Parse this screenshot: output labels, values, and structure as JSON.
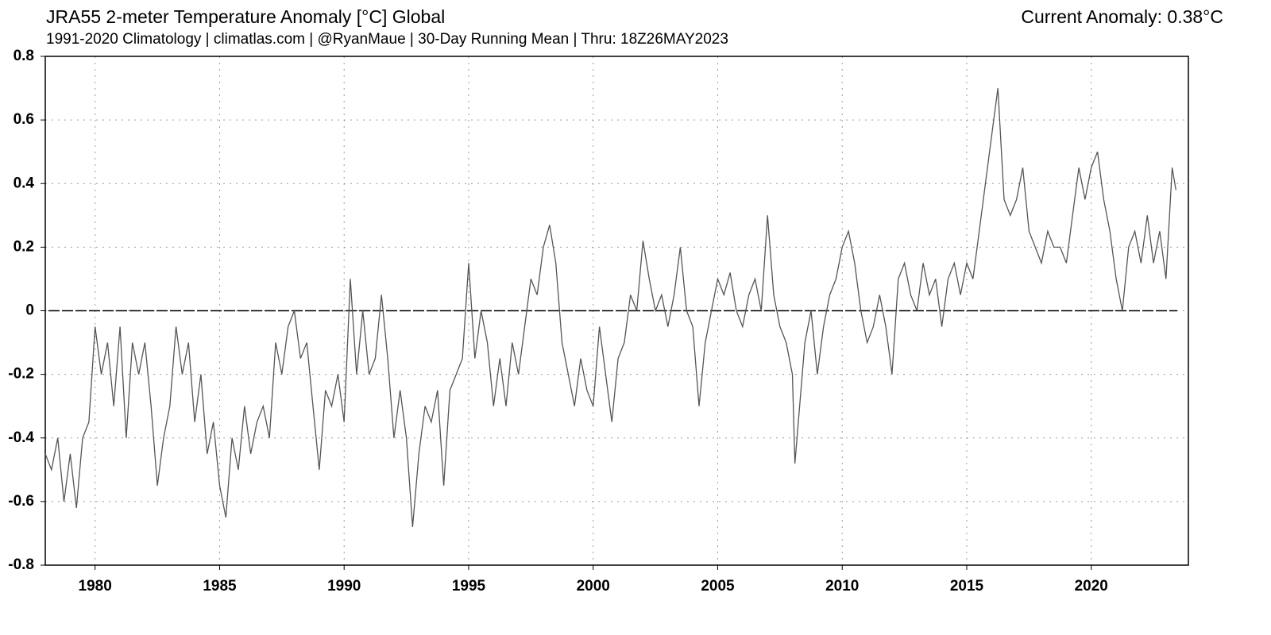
{
  "chart_data": {
    "type": "line",
    "title": "JRA55 2-meter Temperature Anomaly [°C] Global",
    "subtitle": "1991-2020 Climatology | climatlas.com | @RyanMaue | 30-Day Running Mean | Thru: 18Z26MAY2023",
    "annotation": "Current Anomaly: 0.38°C",
    "x": [
      1978.0,
      1978.25,
      1978.5,
      1978.75,
      1979.0,
      1979.25,
      1979.5,
      1979.75,
      1980.0,
      1980.25,
      1980.5,
      1980.75,
      1981.0,
      1981.25,
      1981.5,
      1981.75,
      1982.0,
      1982.25,
      1982.5,
      1982.75,
      1983.0,
      1983.25,
      1983.5,
      1983.75,
      1984.0,
      1984.25,
      1984.5,
      1984.75,
      1985.0,
      1985.25,
      1985.5,
      1985.75,
      1986.0,
      1986.25,
      1986.5,
      1986.75,
      1987.0,
      1987.25,
      1987.5,
      1987.75,
      1988.0,
      1988.25,
      1988.5,
      1988.75,
      1989.0,
      1989.25,
      1989.5,
      1989.75,
      1990.0,
      1990.25,
      1990.5,
      1990.75,
      1991.0,
      1991.25,
      1991.5,
      1991.75,
      1992.0,
      1992.25,
      1992.5,
      1992.75,
      1993.0,
      1993.25,
      1993.5,
      1993.75,
      1994.0,
      1994.25,
      1994.5,
      1994.75,
      1995.0,
      1995.25,
      1995.5,
      1995.75,
      1996.0,
      1996.25,
      1996.5,
      1996.75,
      1997.0,
      1997.25,
      1997.5,
      1997.75,
      1998.0,
      1998.25,
      1998.5,
      1998.75,
      1999.0,
      1999.25,
      1999.5,
      1999.75,
      2000.0,
      2000.25,
      2000.5,
      2000.75,
      2001.0,
      2001.25,
      2001.5,
      2001.75,
      2002.0,
      2002.25,
      2002.5,
      2002.75,
      2003.0,
      2003.25,
      2003.5,
      2003.75,
      2004.0,
      2004.25,
      2004.5,
      2004.75,
      2005.0,
      2005.25,
      2005.5,
      2005.75,
      2006.0,
      2006.25,
      2006.5,
      2006.75,
      2007.0,
      2007.25,
      2007.5,
      2007.75,
      2008.0,
      2008.1,
      2008.5,
      2008.75,
      2009.0,
      2009.25,
      2009.5,
      2009.75,
      2010.0,
      2010.25,
      2010.5,
      2010.75,
      2011.0,
      2011.25,
      2011.5,
      2011.75,
      2012.0,
      2012.25,
      2012.5,
      2012.75,
      2013.0,
      2013.25,
      2013.5,
      2013.75,
      2014.0,
      2014.25,
      2014.5,
      2014.75,
      2015.0,
      2015.25,
      2015.5,
      2015.75,
      2016.0,
      2016.25,
      2016.5,
      2016.75,
      2017.0,
      2017.25,
      2017.5,
      2017.75,
      2018.0,
      2018.25,
      2018.5,
      2018.75,
      2019.0,
      2019.25,
      2019.5,
      2019.75,
      2020.0,
      2020.25,
      2020.5,
      2020.75,
      2021.0,
      2021.25,
      2021.5,
      2021.75,
      2022.0,
      2022.25,
      2022.5,
      2022.75,
      2023.0,
      2023.25,
      2023.4
    ],
    "series": [
      {
        "color": "#555555",
        "values": [
          -0.45,
          -0.5,
          -0.4,
          -0.6,
          -0.45,
          -0.62,
          -0.4,
          -0.35,
          -0.05,
          -0.2,
          -0.1,
          -0.3,
          -0.05,
          -0.4,
          -0.1,
          -0.2,
          -0.1,
          -0.3,
          -0.55,
          -0.4,
          -0.3,
          -0.05,
          -0.2,
          -0.1,
          -0.35,
          -0.2,
          -0.45,
          -0.35,
          -0.55,
          -0.65,
          -0.4,
          -0.5,
          -0.3,
          -0.45,
          -0.35,
          -0.3,
          -0.4,
          -0.1,
          -0.2,
          -0.05,
          0.0,
          -0.15,
          -0.1,
          -0.3,
          -0.5,
          -0.25,
          -0.3,
          -0.2,
          -0.35,
          0.1,
          -0.2,
          0.0,
          -0.2,
          -0.15,
          0.05,
          -0.15,
          -0.4,
          -0.25,
          -0.4,
          -0.68,
          -0.45,
          -0.3,
          -0.35,
          -0.25,
          -0.55,
          -0.25,
          -0.2,
          -0.15,
          0.15,
          -0.15,
          0.0,
          -0.1,
          -0.3,
          -0.15,
          -0.3,
          -0.1,
          -0.2,
          -0.05,
          0.1,
          0.05,
          0.2,
          0.27,
          0.15,
          -0.1,
          -0.2,
          -0.3,
          -0.15,
          -0.25,
          -0.3,
          -0.05,
          -0.2,
          -0.35,
          -0.15,
          -0.1,
          0.05,
          0.0,
          0.22,
          0.1,
          0.0,
          0.05,
          -0.05,
          0.05,
          0.2,
          0.0,
          -0.05,
          -0.3,
          -0.1,
          0.0,
          0.1,
          0.05,
          0.12,
          0.0,
          -0.05,
          0.05,
          0.1,
          0.0,
          0.3,
          0.05,
          -0.05,
          -0.1,
          -0.2,
          -0.48,
          -0.1,
          0.0,
          -0.2,
          -0.05,
          0.05,
          0.1,
          0.2,
          0.25,
          0.15,
          0.0,
          -0.1,
          -0.05,
          0.05,
          -0.05,
          -0.2,
          0.1,
          0.15,
          0.05,
          0.0,
          0.15,
          0.05,
          0.1,
          -0.05,
          0.1,
          0.15,
          0.05,
          0.15,
          0.1,
          0.25,
          0.4,
          0.55,
          0.7,
          0.35,
          0.3,
          0.35,
          0.45,
          0.25,
          0.2,
          0.15,
          0.25,
          0.2,
          0.2,
          0.15,
          0.3,
          0.45,
          0.35,
          0.45,
          0.5,
          0.35,
          0.25,
          0.1,
          0.0,
          0.2,
          0.25,
          0.15,
          0.3,
          0.15,
          0.25,
          0.1,
          0.45,
          0.38
        ]
      }
    ],
    "xlim": [
      1978.0,
      2023.9
    ],
    "xticks": [
      1980,
      1985,
      1990,
      1995,
      2000,
      2005,
      2010,
      2015,
      2020
    ],
    "ylim": [
      -0.8,
      0.8
    ],
    "yticks": [
      -0.8,
      -0.6,
      -0.4,
      -0.2,
      0,
      0.2,
      0.4,
      0.6,
      0.8
    ],
    "grid": true
  }
}
